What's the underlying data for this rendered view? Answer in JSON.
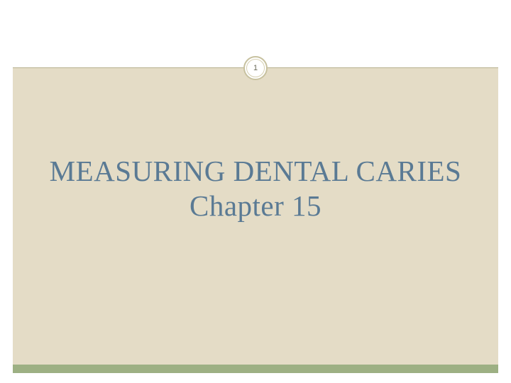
{
  "slide": {
    "page_number": "1",
    "title_line1": "MEASURING DENTAL CARIES",
    "title_line2": "Chapter 15"
  },
  "style": {
    "background_color": "#ffffff",
    "panel_color": "#e4dcc6",
    "footer_bar_color": "#9db083",
    "divider_color": "#b8b290",
    "badge_border_color": "#c7c19f",
    "badge_inner_border_color": "#d6d0b2",
    "title_color": "#5a7a94",
    "page_number_color": "#6b6b5a",
    "title_fontsize": 41,
    "page_number_fontsize": 11,
    "font_family": "Georgia, 'Times New Roman', serif"
  }
}
